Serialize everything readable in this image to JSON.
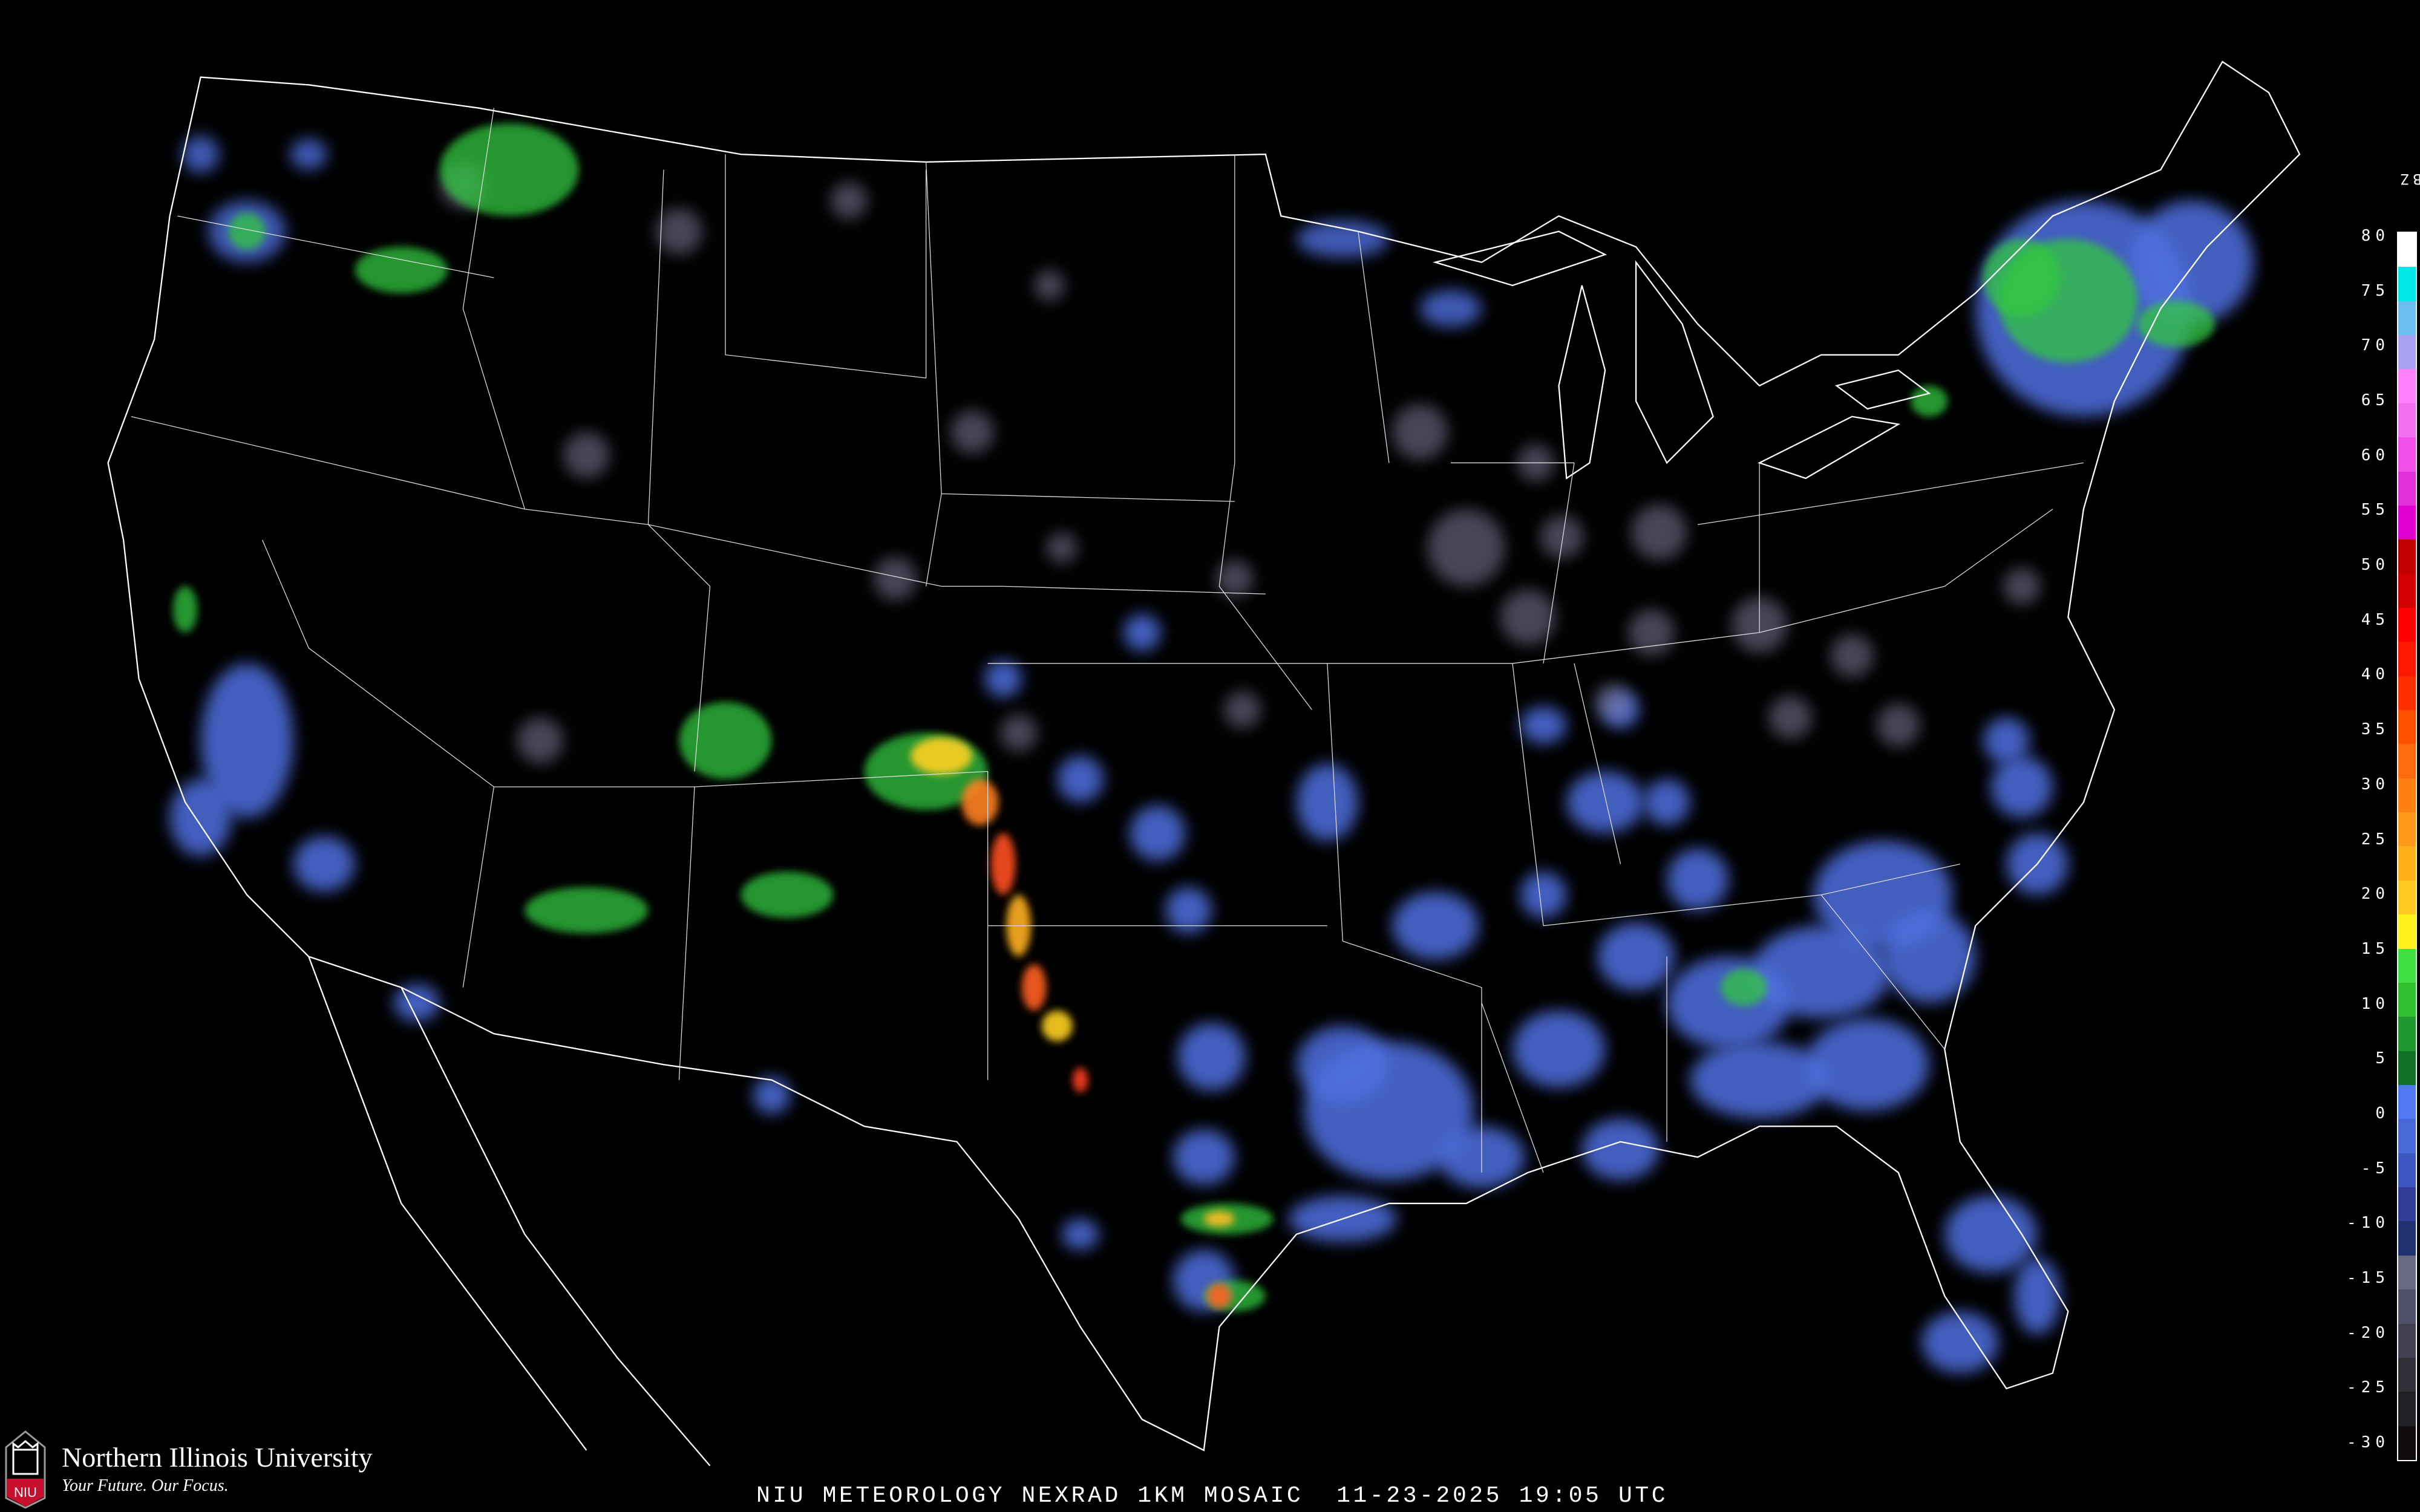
{
  "caption": "NIU METEOROLOGY NEXRAD 1KM MOSAIC  11-23-2025 19:05 UTC",
  "logo": {
    "name": "Northern Illinois University",
    "tagline": "Your Future. Our Focus.",
    "mark": "NIU"
  },
  "legend": {
    "unit": "dBZ",
    "ticks": [
      "80",
      "75",
      "70",
      "65",
      "60",
      "55",
      "50",
      "45",
      "40",
      "35",
      "30",
      "25",
      "20",
      "15",
      "10",
      "5",
      "0",
      "-5",
      "-10",
      "-15",
      "-20",
      "-25",
      "-30"
    ],
    "colors": [
      "#ffffff",
      "#00e8e8",
      "#6cbcf0",
      "#a8a0f0",
      "#ff80f8",
      "#f070f0",
      "#f050e8",
      "#e030d8",
      "#e000d0",
      "#c00000",
      "#d00000",
      "#ff0000",
      "#ff1800",
      "#ff3000",
      "#ff5000",
      "#ff6a10",
      "#ff8010",
      "#ff9818",
      "#ffb018",
      "#ffc820",
      "#fff020",
      "#40e040",
      "#30c030",
      "#209830",
      "#107028",
      "#5078f0",
      "#4868d8",
      "#3c58c0",
      "#303c98",
      "#203070",
      "#686880",
      "#505068",
      "#404050",
      "#303038",
      "#202024",
      "#100c10"
    ],
    "key_colors": {
      "border": "#ffffff",
      "roads": "#8a4a20",
      "counties": "#505050"
    }
  }
}
